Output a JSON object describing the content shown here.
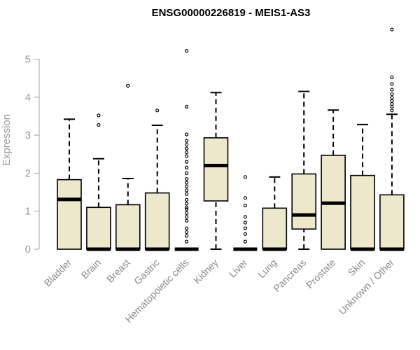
{
  "chart_data": {
    "type": "boxplot",
    "title": "ENSG00000226819 - MEIS1-AS3",
    "ylabel": "Expression",
    "xlabel": "",
    "ylim": [
      0,
      5.85
    ],
    "yticks": [
      0,
      1,
      2,
      3,
      4,
      5
    ],
    "box_color": "#ede7cc",
    "categories": [
      "Bladder",
      "Brain",
      "Breast",
      "Gastric",
      "Hematopoietic cells",
      "Kidney",
      "Liver",
      "Lung",
      "Pancreas",
      "Prostate",
      "Skin",
      "Unknown / Other"
    ],
    "boxes": [
      {
        "min": 0,
        "q1": 0,
        "median": 1.31,
        "q3": 1.83,
        "max": 3.42,
        "outliers": []
      },
      {
        "min": 0,
        "q1": 0,
        "median": 0,
        "q3": 1.1,
        "max": 2.38,
        "outliers": [
          3.27,
          3.52
        ]
      },
      {
        "min": 0,
        "q1": 0,
        "median": 0,
        "q3": 1.17,
        "max": 1.86,
        "outliers": [
          4.3
        ]
      },
      {
        "min": 0,
        "q1": 0,
        "median": 0,
        "q3": 1.48,
        "max": 3.26,
        "outliers": [
          3.65
        ]
      },
      {
        "min": 0,
        "q1": 0,
        "median": 0,
        "q3": 0,
        "max": 0,
        "outliers": [
          0.2,
          0.35,
          0.45,
          0.55,
          0.75,
          0.85,
          0.95,
          1.05,
          1.1,
          1.2,
          1.3,
          1.45,
          1.55,
          1.65,
          1.75,
          1.85,
          2.0,
          2.15,
          2.3,
          2.45,
          2.55,
          2.65,
          2.75,
          2.85,
          3.02,
          3.75,
          5.22
        ]
      },
      {
        "min": 0,
        "q1": 1.27,
        "median": 2.2,
        "q3": 2.93,
        "max": 4.12,
        "outliers": []
      },
      {
        "min": 0,
        "q1": 0,
        "median": 0,
        "q3": 0,
        "max": 0,
        "outliers": [
          0.2,
          0.4,
          0.55,
          0.7,
          0.85,
          1.15,
          1.35,
          1.9
        ]
      },
      {
        "min": 0,
        "q1": 0,
        "median": 0,
        "q3": 1.08,
        "max": 1.9,
        "outliers": []
      },
      {
        "min": 0,
        "q1": 0.53,
        "median": 0.9,
        "q3": 1.98,
        "max": 4.15,
        "outliers": []
      },
      {
        "min": 0,
        "q1": 0,
        "median": 1.21,
        "q3": 2.47,
        "max": 3.66,
        "outliers": []
      },
      {
        "min": 0,
        "q1": 0,
        "median": 0,
        "q3": 1.94,
        "max": 3.28,
        "outliers": []
      },
      {
        "min": 0,
        "q1": 0,
        "median": 0,
        "q3": 1.43,
        "max": 3.55,
        "outliers": [
          3.65,
          3.75,
          3.82,
          3.9,
          3.98,
          4.08,
          4.2,
          4.35,
          4.52,
          5.78
        ]
      }
    ]
  }
}
